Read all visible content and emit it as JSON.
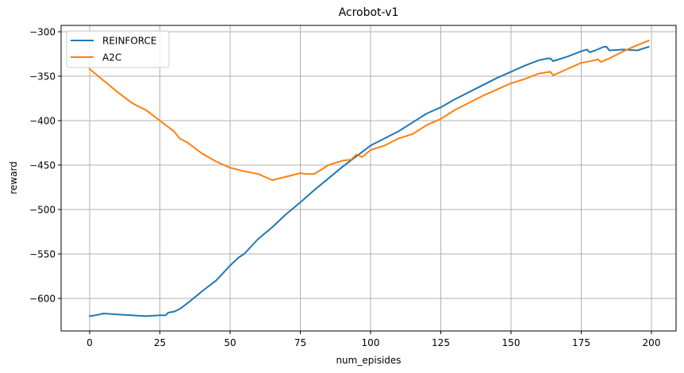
{
  "chart_data": {
    "type": "line",
    "title": "Acrobot-v1",
    "xlabel": "num_episides",
    "ylabel": "reward",
    "xlim": [
      -10,
      210
    ],
    "ylim": [
      -640,
      -293
    ],
    "xticks": [
      0,
      25,
      50,
      75,
      100,
      125,
      150,
      175,
      200
    ],
    "yticks": [
      -300,
      -350,
      -400,
      -450,
      -500,
      -550,
      -600
    ],
    "xtick_labels": [
      "0",
      "25",
      "50",
      "75",
      "100",
      "125",
      "150",
      "175",
      "200"
    ],
    "ytick_labels": [
      "−300",
      "−350",
      "−400",
      "−450",
      "−500",
      "−550",
      "−600"
    ],
    "grid": true,
    "legend_position": "upper left",
    "series": [
      {
        "name": "REINFORCE",
        "color": "#1f77b4",
        "x": [
          0,
          2,
          5,
          10,
          15,
          20,
          25,
          27,
          28,
          30,
          32,
          35,
          40,
          45,
          50,
          53,
          55,
          60,
          65,
          70,
          75,
          80,
          85,
          90,
          95,
          100,
          105,
          110,
          115,
          120,
          125,
          130,
          135,
          140,
          145,
          150,
          155,
          160,
          163,
          164,
          165,
          170,
          175,
          177,
          178,
          180,
          183,
          184,
          185,
          190,
          195,
          199
        ],
        "values": [
          -620,
          -619,
          -617,
          -618,
          -619,
          -620,
          -619,
          -619,
          -616,
          -615,
          -612,
          -605,
          -592,
          -580,
          -563,
          -554,
          -550,
          -533,
          -520,
          -505,
          -492,
          -478,
          -465,
          -452,
          -440,
          -428,
          -420,
          -412,
          -402,
          -392,
          -385,
          -376,
          -368,
          -360,
          -352,
          -345,
          -338,
          -332,
          -330,
          -330,
          -333,
          -328,
          -322,
          -320,
          -323,
          -321,
          -317,
          -317,
          -321,
          -320,
          -321,
          -317
        ]
      },
      {
        "name": "A2C",
        "color": "#ff7f0e",
        "x": [
          0,
          5,
          10,
          15,
          18,
          20,
          25,
          30,
          32,
          35,
          40,
          45,
          50,
          55,
          60,
          65,
          70,
          75,
          77,
          80,
          85,
          90,
          93,
          95,
          97,
          100,
          105,
          110,
          115,
          120,
          125,
          130,
          135,
          140,
          145,
          150,
          155,
          160,
          164,
          165,
          170,
          175,
          180,
          181,
          182,
          185,
          190,
          195,
          199
        ],
        "values": [
          -342,
          -355,
          -368,
          -380,
          -385,
          -388,
          -400,
          -412,
          -420,
          -425,
          -437,
          -446,
          -453,
          -457,
          -460,
          -467,
          -463,
          -459,
          -460,
          -460,
          -450,
          -445,
          -444,
          -438,
          -441,
          -433,
          -428,
          -420,
          -415,
          -405,
          -398,
          -388,
          -380,
          -372,
          -365,
          -358,
          -353,
          -347,
          -345,
          -349,
          -342,
          -335,
          -332,
          -331,
          -334,
          -330,
          -322,
          -315,
          -310
        ]
      }
    ]
  },
  "legend": {
    "items": [
      {
        "label": "REINFORCE",
        "color": "#1f77b4"
      },
      {
        "label": "A2C",
        "color": "#ff7f0e"
      }
    ]
  }
}
